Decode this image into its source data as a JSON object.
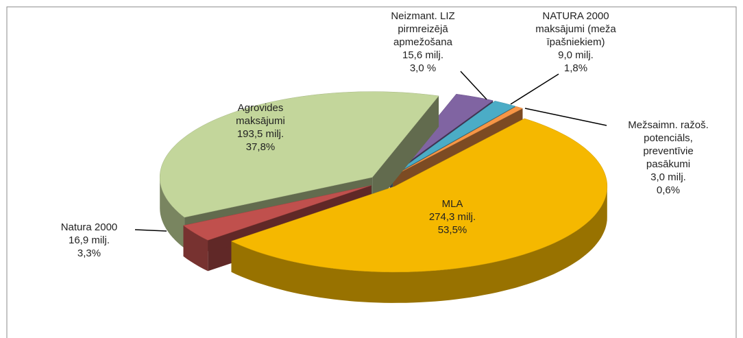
{
  "chart_data": {
    "type": "pie3d",
    "categories": [
      "Mežsaimn. ražoš.\npotenciāls,\npreventīvie\npasākumi",
      "MLA",
      "Natura 2000",
      "Agrovides\nmaksājumi",
      "Neizmant. LIZ\npirmreizējā\napmežošana",
      "NATURA 2000\nmaksājumi (meža\nīpašniekiem)"
    ],
    "amount_labels": [
      "3,0 milj.",
      "274,3 milj.",
      "16,9 milj.",
      "193,5 milj.",
      "15,6 milj.",
      "9,0 milj."
    ],
    "values": [
      0.6,
      53.5,
      3.3,
      37.8,
      3.0,
      1.8
    ],
    "value_labels": [
      "0,6%",
      "53,5%",
      "3,3%",
      "37,8%",
      "3,0 %",
      "1,8%"
    ],
    "colors": [
      "#f79646",
      "#f5b800",
      "#c0504d",
      "#c3d69b",
      "#8064a2",
      "#4bacc6"
    ]
  }
}
